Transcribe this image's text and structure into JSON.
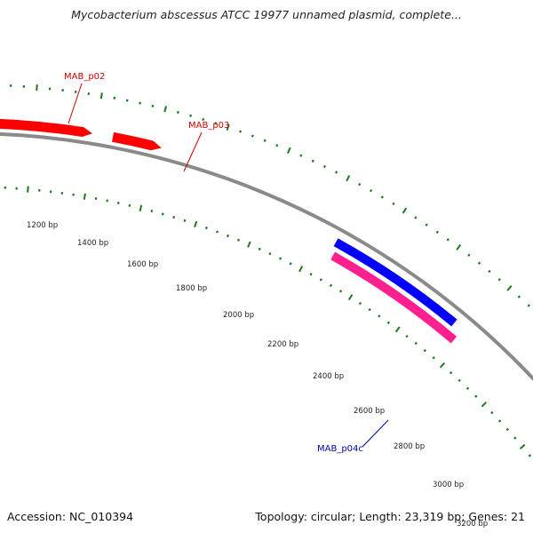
{
  "header": {
    "title": "Mycobacterium abscessus ATCC 19977 unnamed plasmid, complete..."
  },
  "footer": {
    "accession": "Accession: NC_010394",
    "summary": "Topology: circular; Length: 23,319 bp; Genes: 21"
  },
  "colors": {
    "backbone": "#8a8a8a",
    "tick": "#1e7a1e",
    "forward_gene": "#ff0000",
    "reverse_gene_blue": "#0000ff",
    "reverse_gene_pink": "#ff1f8f",
    "label_forward": "#cc0000",
    "label_reverse": "#0000aa"
  },
  "scale": {
    "labels": [
      "1200 bp",
      "1400 bp",
      "1600 bp",
      "1800 bp",
      "2000 bp",
      "2200 bp",
      "2400 bp",
      "2600 bp",
      "2800 bp",
      "3000 bp",
      "3200 bp"
    ]
  },
  "genes": [
    {
      "name": "MAB_p02",
      "strand": "forward",
      "color": "#ff0000",
      "label_color": "#cc0000",
      "show_label": true
    },
    {
      "name": "MAB_p03",
      "strand": "forward",
      "color": "#ff0000",
      "label_color": "#cc0000",
      "show_label": true
    },
    {
      "name": "",
      "strand": "reverse",
      "color": "#0000ff",
      "label_color": "#0000aa",
      "show_label": false
    },
    {
      "name": "MAB_p04c",
      "strand": "reverse",
      "color": "#ff1f8f",
      "label_color": "#0000aa",
      "show_label": true
    }
  ]
}
